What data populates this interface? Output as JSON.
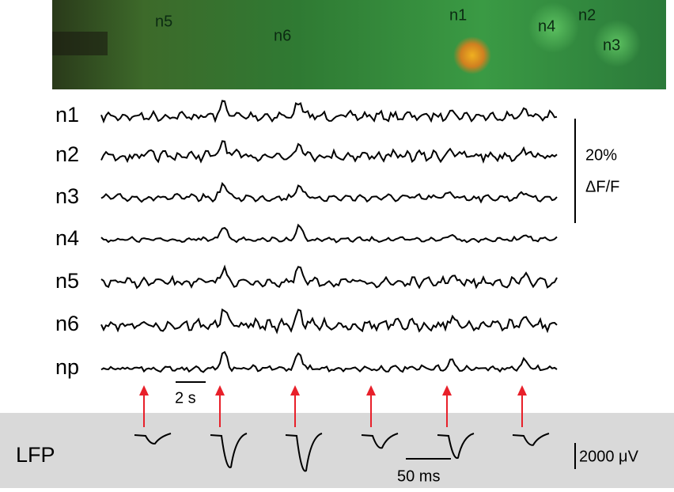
{
  "image": {
    "labels": [
      "n5",
      "n6",
      "n1",
      "n4",
      "n2",
      "n3"
    ]
  },
  "traces": {
    "labels": [
      "n1",
      "n2",
      "n3",
      "n4",
      "n5",
      "n6",
      "np"
    ]
  },
  "scale_bars": {
    "dff_value": "20%",
    "dff_unit": "ΔF/F",
    "time": "2 s",
    "lfp_time": "50 ms",
    "lfp_amp": "2000 μV"
  },
  "lfp": {
    "label": "LFP"
  }
}
